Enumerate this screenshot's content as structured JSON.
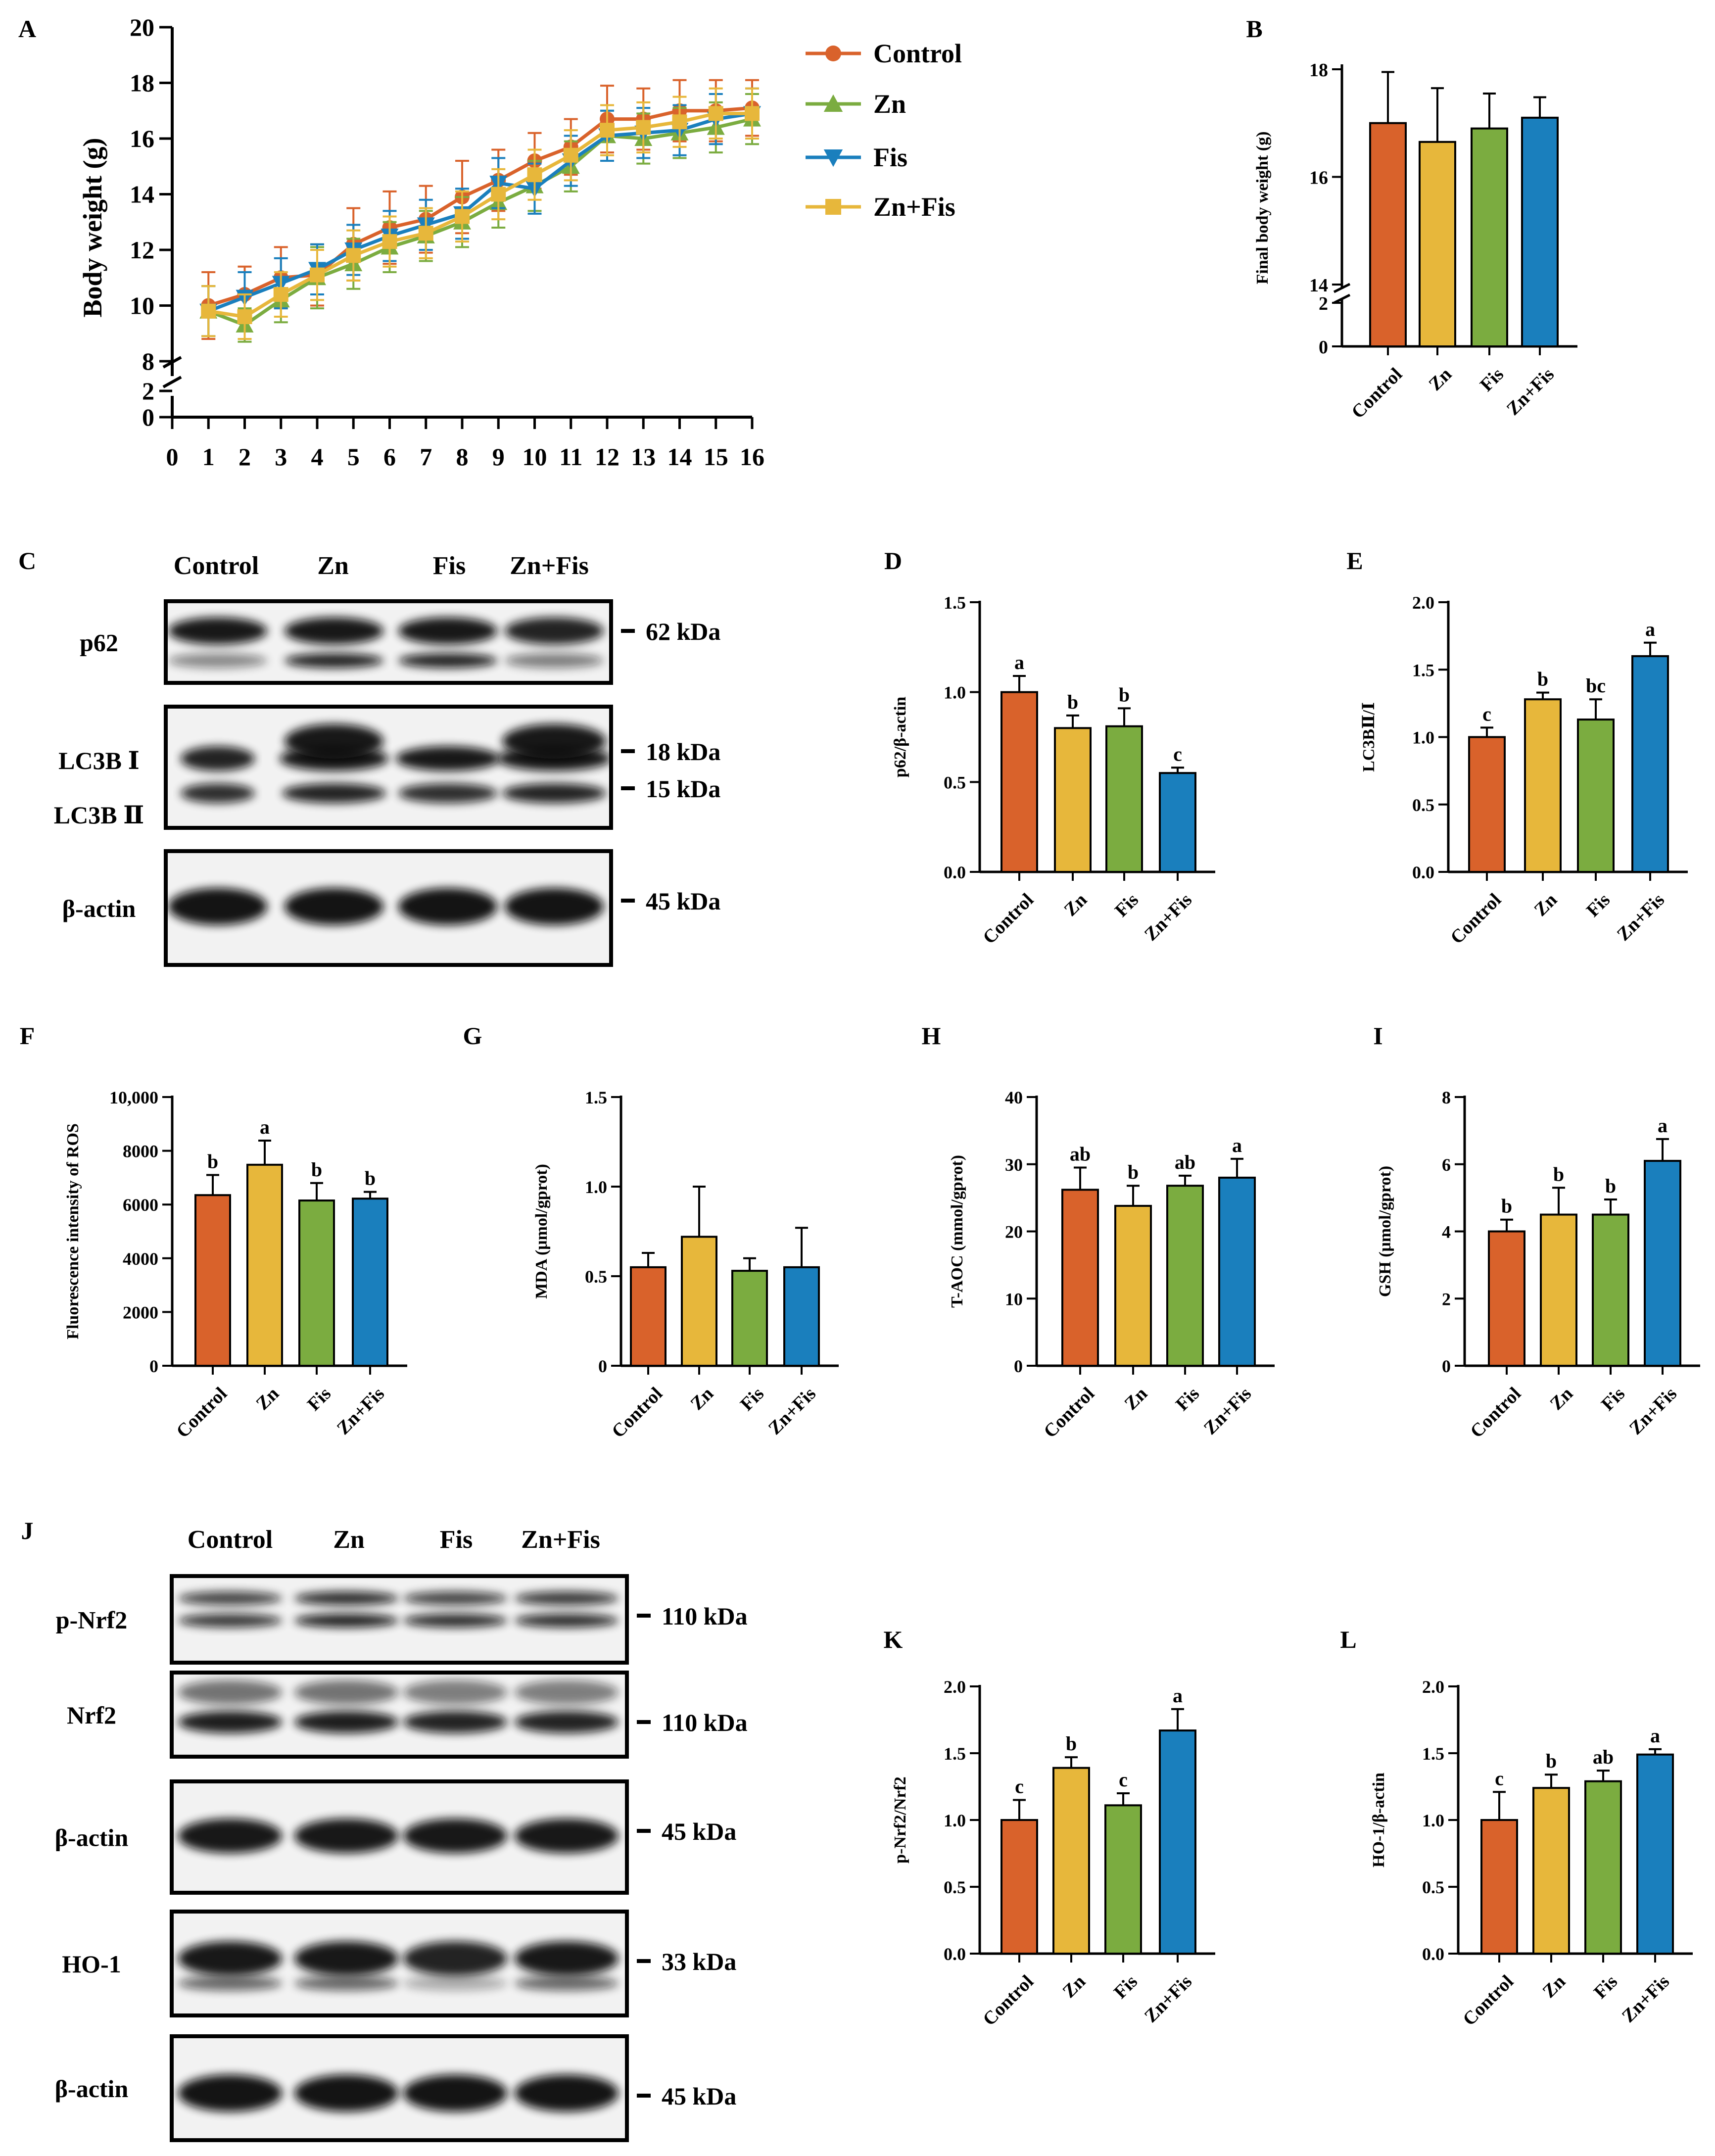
{
  "colors": {
    "Control": "#d9622b",
    "Zn": "#e7b73b",
    "Fis": "#7bac40",
    "ZnFis": "#1a7fbd"
  },
  "groups": [
    "Control",
    "Zn",
    "Fis",
    "Zn+Fis"
  ],
  "panel_letters": [
    "A",
    "B",
    "C",
    "D",
    "E",
    "F",
    "G",
    "H",
    "I",
    "J",
    "K",
    "L"
  ],
  "blots": {
    "C": {
      "headers": [
        "Control",
        "Zn",
        "Fis",
        "Zn+Fis"
      ],
      "rows": [
        {
          "label": "p62",
          "kda": [
            "62 kDa"
          ]
        },
        {
          "label": "LC3B Ⅰ",
          "label2": "LC3B Ⅱ",
          "kda": [
            "18 kDa",
            "15 kDa"
          ]
        },
        {
          "label": "β-actin",
          "kda": [
            "45 kDa"
          ]
        }
      ]
    },
    "J": {
      "headers": [
        "Control",
        "Zn",
        "Fis",
        "Zn+Fis"
      ],
      "rows": [
        {
          "label": "p-Nrf2",
          "kda": [
            "110 kDa"
          ]
        },
        {
          "label": "Nrf2",
          "kda": [
            "110 kDa"
          ]
        },
        {
          "label": "β-actin",
          "kda": [
            "45 kDa"
          ]
        },
        {
          "label": "HO-1",
          "kda": [
            "33 kDa"
          ]
        },
        {
          "label": "β-actin",
          "kda": [
            "45 kDa"
          ]
        }
      ]
    }
  },
  "chart_data": [
    {
      "panel": "A",
      "type": "line",
      "ylabel": "Body weight (g)",
      "xlabel": "",
      "xlim": [
        0,
        16
      ],
      "ylim_lower": [
        0,
        2
      ],
      "ylim_upper": [
        8,
        20
      ],
      "yticks_lower": [
        0,
        2
      ],
      "yticks_upper": [
        8,
        10,
        12,
        14,
        16,
        18,
        20
      ],
      "xticks": [
        0,
        1,
        2,
        3,
        4,
        5,
        6,
        7,
        8,
        9,
        10,
        11,
        12,
        13,
        14,
        15,
        16
      ],
      "x": [
        1,
        2,
        3,
        4,
        5,
        6,
        7,
        8,
        9,
        10,
        11,
        12,
        13,
        14,
        15,
        16
      ],
      "series": [
        {
          "name": "Control",
          "color": "#d9622b",
          "marker": "circle",
          "values": [
            10.0,
            10.4,
            11.0,
            11.1,
            12.2,
            12.8,
            13.1,
            13.9,
            14.5,
            15.2,
            15.7,
            16.7,
            16.7,
            17.0,
            17.0,
            17.1
          ],
          "errors": [
            1.2,
            1.0,
            1.1,
            1.1,
            1.3,
            1.3,
            1.2,
            1.3,
            1.1,
            1.0,
            1.0,
            1.2,
            1.1,
            1.1,
            1.1,
            1.0
          ]
        },
        {
          "name": "Zn",
          "color": "#7bac40",
          "marker": "triangle-up",
          "values": [
            9.8,
            9.3,
            10.2,
            11.0,
            11.5,
            12.1,
            12.5,
            13.0,
            13.7,
            14.3,
            15.0,
            16.1,
            16.0,
            16.2,
            16.4,
            16.7
          ],
          "errors": [
            0.9,
            0.6,
            0.8,
            1.1,
            0.9,
            0.9,
            0.9,
            0.9,
            0.9,
            0.9,
            0.9,
            0.9,
            0.9,
            0.9,
            0.9,
            0.9
          ]
        },
        {
          "name": "Fis",
          "color": "#1a7fbd",
          "marker": "triangle-down",
          "values": [
            9.8,
            10.3,
            10.8,
            11.3,
            12.0,
            12.5,
            12.9,
            13.3,
            14.4,
            14.2,
            15.2,
            16.1,
            16.2,
            16.3,
            16.7,
            16.9
          ],
          "errors": [
            0.9,
            0.9,
            0.9,
            0.9,
            0.9,
            0.9,
            0.9,
            0.9,
            0.9,
            0.9,
            0.9,
            0.9,
            0.9,
            0.9,
            0.9,
            0.9
          ]
        },
        {
          "name": "Zn+Fis",
          "color": "#e7b73b",
          "marker": "square",
          "values": [
            9.8,
            9.6,
            10.4,
            11.1,
            11.8,
            12.3,
            12.6,
            13.2,
            14.0,
            14.7,
            15.4,
            16.3,
            16.4,
            16.6,
            16.9,
            16.9
          ],
          "errors": [
            0.9,
            0.8,
            0.8,
            0.9,
            0.9,
            0.9,
            0.9,
            0.9,
            0.9,
            0.9,
            0.9,
            0.9,
            0.9,
            0.9,
            0.9,
            0.9
          ]
        }
      ]
    },
    {
      "panel": "B",
      "type": "bar",
      "ylabel": "Final body weight (g)",
      "categories": [
        "Control",
        "Zn",
        "Fis",
        "Zn+Fis"
      ],
      "values": [
        17.0,
        16.65,
        16.9,
        17.1
      ],
      "errors": [
        0.95,
        1.0,
        0.65,
        0.38
      ],
      "ylim_lower": [
        0,
        2
      ],
      "ylim_upper": [
        14,
        18
      ],
      "yticks_lower": [
        0,
        2
      ],
      "yticks_upper": [
        14,
        16,
        18
      ],
      "letters": [
        "",
        "",
        "",
        ""
      ]
    },
    {
      "panel": "D",
      "type": "bar",
      "ylabel": "p62/β-actin",
      "categories": [
        "Control",
        "Zn",
        "Fis",
        "Zn+Fis"
      ],
      "values": [
        1.0,
        0.8,
        0.81,
        0.55
      ],
      "errors": [
        0.09,
        0.07,
        0.1,
        0.03
      ],
      "ylim": [
        0,
        1.5
      ],
      "yticks": [
        "0.0",
        "0.5",
        "1.0",
        "1.5"
      ],
      "letters": [
        "a",
        "b",
        "b",
        "c"
      ]
    },
    {
      "panel": "E",
      "type": "bar",
      "ylabel": "LC3BⅡ/Ⅰ",
      "categories": [
        "Control",
        "Zn",
        "Fis",
        "Zn+Fis"
      ],
      "values": [
        1.0,
        1.28,
        1.13,
        1.6
      ],
      "errors": [
        0.07,
        0.05,
        0.15,
        0.1
      ],
      "ylim": [
        0,
        2.0
      ],
      "yticks": [
        "0.0",
        "0.5",
        "1.0",
        "1.5",
        "2.0"
      ],
      "letters": [
        "c",
        "b",
        "bc",
        "a"
      ]
    },
    {
      "panel": "F",
      "type": "bar",
      "ylabel": "Fluorescence intensity of ROS",
      "categories": [
        "Control",
        "Zn",
        "Fis",
        "Zn+Fis"
      ],
      "values": [
        6350,
        7480,
        6150,
        6220
      ],
      "errors": [
        750,
        900,
        650,
        250
      ],
      "ylim": [
        0,
        10000
      ],
      "yticks": [
        "0",
        "2000",
        "4000",
        "6000",
        "8000",
        "10,000"
      ],
      "letters": [
        "b",
        "a",
        "b",
        "b"
      ]
    },
    {
      "panel": "G",
      "type": "bar",
      "ylabel": "MDA (μmol/gprot)",
      "categories": [
        "Control",
        "Zn",
        "Fis",
        "Zn+Fis"
      ],
      "values": [
        0.55,
        0.72,
        0.53,
        0.55
      ],
      "errors": [
        0.08,
        0.28,
        0.07,
        0.22
      ],
      "ylim": [
        0,
        1.5
      ],
      "yticks": [
        "0",
        "0.5",
        "1.0",
        "1.5"
      ],
      "letters": [
        "",
        "",
        "",
        ""
      ]
    },
    {
      "panel": "H",
      "type": "bar",
      "ylabel": "T-AOC (mmol/gprot)",
      "categories": [
        "Control",
        "Zn",
        "Fis",
        "Zn+Fis"
      ],
      "values": [
        26.2,
        23.8,
        26.8,
        28.0
      ],
      "errors": [
        3.3,
        3.0,
        1.5,
        2.8
      ],
      "ylim": [
        0,
        40
      ],
      "yticks": [
        "0",
        "10",
        "20",
        "30",
        "40"
      ],
      "letters": [
        "ab",
        "b",
        "ab",
        "a"
      ]
    },
    {
      "panel": "I",
      "type": "bar",
      "ylabel": "GSH (μmol/gprot)",
      "categories": [
        "Control",
        "Zn",
        "Fis",
        "Zn+Fis"
      ],
      "values": [
        4.0,
        4.5,
        4.5,
        6.1
      ],
      "errors": [
        0.35,
        0.8,
        0.45,
        0.65
      ],
      "ylim": [
        0,
        8
      ],
      "yticks": [
        "0",
        "2",
        "4",
        "6",
        "8"
      ],
      "letters": [
        "b",
        "b",
        "b",
        "a"
      ]
    },
    {
      "panel": "K",
      "type": "bar",
      "ylabel": "p-Nrf2/Nrf2",
      "categories": [
        "Control",
        "Zn",
        "Fis",
        "Zn+Fis"
      ],
      "values": [
        1.0,
        1.39,
        1.11,
        1.67
      ],
      "errors": [
        0.15,
        0.08,
        0.09,
        0.16
      ],
      "ylim": [
        0,
        2.0
      ],
      "yticks": [
        "0.0",
        "0.5",
        "1.0",
        "1.5",
        "2.0"
      ],
      "letters": [
        "c",
        "b",
        "c",
        "a"
      ]
    },
    {
      "panel": "L",
      "type": "bar",
      "ylabel": "HO-1/β-actin",
      "categories": [
        "Control",
        "Zn",
        "Fis",
        "Zn+Fis"
      ],
      "values": [
        1.0,
        1.24,
        1.29,
        1.49
      ],
      "errors": [
        0.21,
        0.1,
        0.08,
        0.04
      ],
      "ylim": [
        0,
        2.0
      ],
      "yticks": [
        "0.0",
        "0.5",
        "1.0",
        "1.5",
        "2.0"
      ],
      "letters": [
        "c",
        "b",
        "ab",
        "a"
      ]
    }
  ]
}
